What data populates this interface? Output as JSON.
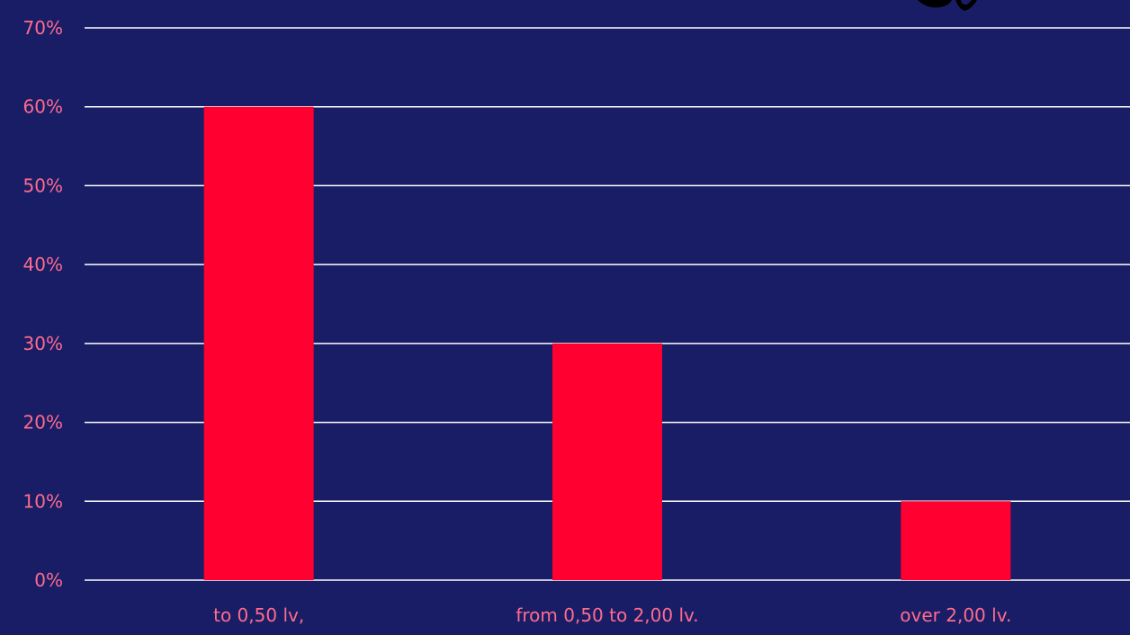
{
  "chart_data": {
    "type": "bar",
    "categories": [
      "to 0,50 lv,",
      "from 0,50 to 2,00 lv.",
      "over 2,00 lv."
    ],
    "values": [
      60,
      30,
      10
    ],
    "ylim": [
      0,
      70
    ],
    "yticks": [
      0,
      10,
      20,
      30,
      40,
      50,
      60,
      70
    ],
    "ytick_labels": [
      "0%",
      "10%",
      "20%",
      "30%",
      "40%",
      "50%",
      "60%",
      "70%"
    ],
    "grid": true,
    "title": "",
    "xlabel": "",
    "ylabel": "",
    "colors": {
      "background": "#181d66",
      "bar": "#ff0030",
      "grid": "#ffffff",
      "label": "#ff6b8e"
    }
  }
}
